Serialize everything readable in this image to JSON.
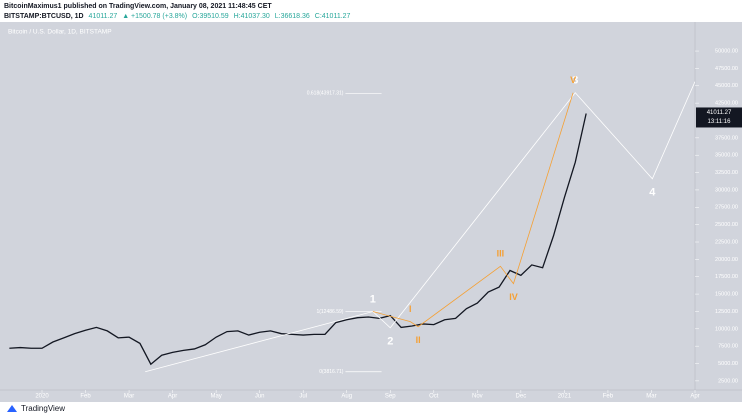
{
  "header": {
    "author_line": "BitcoinMaximus1 published on TradingView.com, January 08, 2021 11:48:45 CET",
    "symbol": "BITSTAMP:BTCUSD, 1D",
    "last": "41011.27",
    "change": "▲ +1500.78 (+3.8%)",
    "open": "O:39510.59",
    "high": "H:41037.30",
    "low": "L:36618.36",
    "close": "C:41011.27"
  },
  "chart_data": {
    "type": "line",
    "title": "Bitcoin / U.S. Dollar, 1D, BITSTAMP",
    "x": [
      -0.75,
      -0.5,
      -0.25,
      0,
      0.25,
      0.5,
      0.75,
      1,
      1.25,
      1.5,
      1.75,
      2,
      2.25,
      2.5,
      2.75,
      3,
      3.25,
      3.5,
      3.75,
      4,
      4.25,
      4.5,
      4.75,
      5,
      5.25,
      5.5,
      5.75,
      6,
      6.25,
      6.5,
      6.75,
      7,
      7.25,
      7.5,
      7.75,
      8,
      8.25,
      8.5,
      8.75,
      9,
      9.25,
      9.5,
      9.75,
      10,
      10.25,
      10.5,
      10.75,
      11,
      11.25,
      11.5,
      11.75,
      12,
      12.25,
      12.5
    ],
    "series": [
      {
        "color": "#131722",
        "values": [
          7200,
          7300,
          7200,
          7200,
          8100,
          8700,
          9300,
          9800,
          10200,
          9700,
          8700,
          8800,
          7900,
          4900,
          6200,
          6600,
          6900,
          7100,
          7700,
          8800,
          9600,
          9700,
          9100,
          9500,
          9700,
          9300,
          9200,
          9100,
          9200,
          9200,
          10900,
          11300,
          11600,
          11700,
          11500,
          11900,
          10200,
          10400,
          10700,
          10600,
          11300,
          11500,
          12900,
          13700,
          15300,
          16000,
          18400,
          17700,
          19200,
          18800,
          23400,
          28900,
          34000,
          41011.27
        ]
      }
    ],
    "countdown": "13:11:16",
    "xlim": [
      -0.85,
      15
    ],
    "xticks": [
      {
        "value": 0,
        "label": "2020"
      },
      {
        "value": 1,
        "label": "Feb"
      },
      {
        "value": 2,
        "label": "Mar"
      },
      {
        "value": 3,
        "label": "Apr"
      },
      {
        "value": 4,
        "label": "May"
      },
      {
        "value": 5,
        "label": "Jun"
      },
      {
        "value": 6,
        "label": "Jul"
      },
      {
        "value": 7,
        "label": "Aug"
      },
      {
        "value": 8,
        "label": "Sep"
      },
      {
        "value": 9,
        "label": "Oct"
      },
      {
        "value": 10,
        "label": "Nov"
      },
      {
        "value": 11,
        "label": "Dec"
      },
      {
        "value": 12,
        "label": "2021"
      },
      {
        "value": 13,
        "label": "Feb"
      },
      {
        "value": 14,
        "label": "Mar"
      },
      {
        "value": 15,
        "label": "Apr"
      }
    ],
    "ylim": [
      900,
      52600
    ],
    "yticks": [
      {
        "value": 2500,
        "label": "2500.00"
      },
      {
        "value": 5000,
        "label": "5000.00"
      },
      {
        "value": 7500,
        "label": "7500.00"
      },
      {
        "value": 10000,
        "label": "10000.00"
      },
      {
        "value": 12500,
        "label": "12500.00"
      },
      {
        "value": 15000,
        "label": "15000.00"
      },
      {
        "value": 17500,
        "label": "17500.00"
      },
      {
        "value": 20000,
        "label": "20000.00"
      },
      {
        "value": 22500,
        "label": "22500.00"
      },
      {
        "value": 25000,
        "label": "25000.00"
      },
      {
        "value": 27500,
        "label": "27500.00"
      },
      {
        "value": 30000,
        "label": "30000.00"
      },
      {
        "value": 32500,
        "label": "32500.00"
      },
      {
        "value": 35000,
        "label": "35000.00"
      },
      {
        "value": 37500,
        "label": "37500.00"
      },
      {
        "value": 42500,
        "label": "42500.00"
      },
      {
        "value": 45000,
        "label": "45000.00"
      },
      {
        "value": 47500,
        "label": "47500.00"
      },
      {
        "value": 50000,
        "label": "50000.00"
      }
    ],
    "fib": {
      "x": [
        6.97,
        7.8
      ],
      "levels": [
        {
          "value": 43917.31,
          "label": "0.618(43917.31)"
        },
        {
          "value": 12486.59,
          "label": "1(12486.59)"
        },
        {
          "value": 3816.71,
          "label": "0(3816.71)"
        }
      ]
    },
    "waves": [
      {
        "color": "#ffffff",
        "points": [
          {
            "label": null,
            "x": 2.37,
            "y": 3817
          },
          {
            "label": "1",
            "x": 7.6,
            "y": 12487
          },
          {
            "label": "2",
            "x": 8.0,
            "y": 10150
          },
          {
            "label": "3",
            "x": 12.25,
            "y": 44000
          },
          {
            "label": "4",
            "x": 14.02,
            "y": 31600
          },
          {
            "label": null,
            "x": 15.0,
            "y": 45600
          }
        ]
      },
      {
        "color": "#f5a034",
        "points": [
          {
            "label": null,
            "x": 7.6,
            "y": 12487
          },
          {
            "label": "I",
            "x": 8.46,
            "y": 11030
          },
          {
            "label": "II",
            "x": 8.64,
            "y": 10300
          },
          {
            "label": "III",
            "x": 10.53,
            "y": 19000
          },
          {
            "label": "IV",
            "x": 10.83,
            "y": 16500
          },
          {
            "label": "V",
            "x": 12.2,
            "y": 44000
          }
        ]
      }
    ]
  },
  "footer": {
    "brand": "TradingView"
  }
}
